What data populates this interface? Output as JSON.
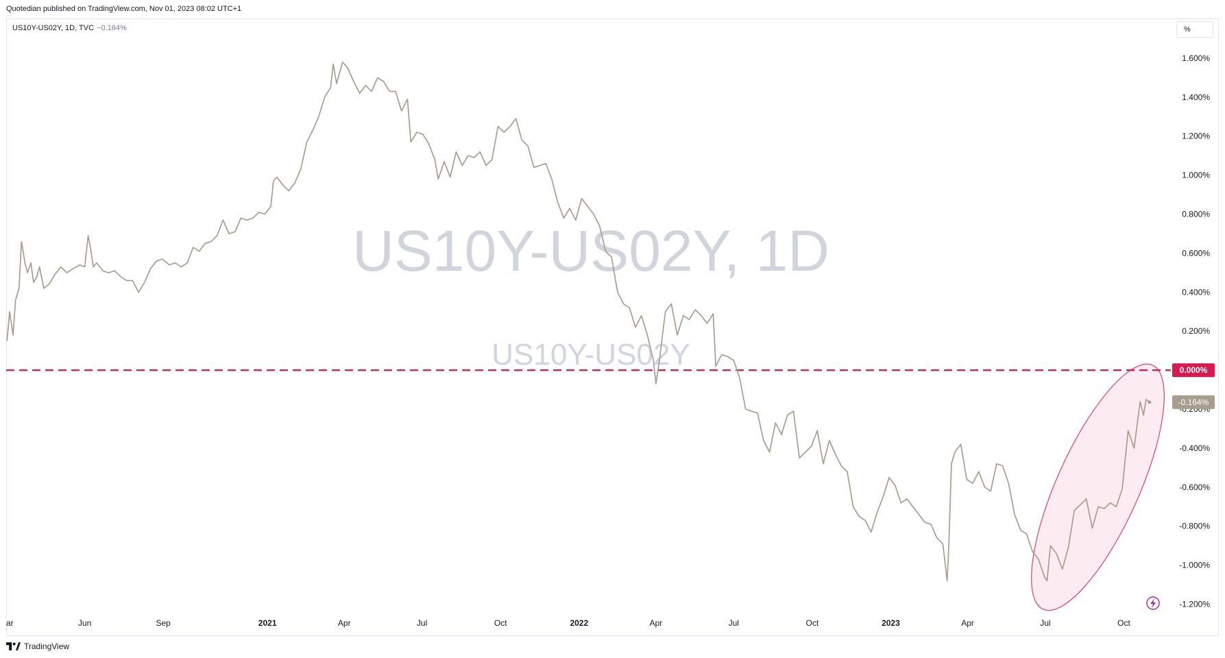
{
  "header": {
    "published_line": "Quotedian published on TradingView.com, Nov 01, 2023 08:02 UTC+1"
  },
  "legend": {
    "symbol": "US10Y-US02Y, 1D, TVC",
    "change": "−0.164%"
  },
  "scale_unit_label": "%",
  "watermark": {
    "main": "US10Y-US02Y, 1D",
    "sub": "US10Y-US02Y"
  },
  "footer": {
    "brand": "TradingView"
  },
  "colors": {
    "series": "#a89d8e",
    "zero_line": "#d81b4f",
    "ellipse_stroke": "#e0406d",
    "ellipse_fill": "#fce9ee",
    "last_price_bg": "#a89d8e",
    "zero_badge_bg": "#d81b4f",
    "watermark": "#d1d4dc"
  },
  "icons": {
    "brand_logo": "tradingview-logo-icon",
    "flash": "lightning-bolt-icon"
  },
  "chart_data": {
    "type": "line",
    "title": "",
    "xlabel": "",
    "ylabel": "",
    "x_range": [
      "2020-03-01",
      "2023-11-25"
    ],
    "ylim": [
      -1.3,
      1.8
    ],
    "y_ticks": [
      {
        "value": 1.6,
        "label": "1.600%"
      },
      {
        "value": 1.4,
        "label": "1.400%"
      },
      {
        "value": 1.2,
        "label": "1.200%"
      },
      {
        "value": 1.0,
        "label": "1.000%"
      },
      {
        "value": 0.8,
        "label": "0.800%"
      },
      {
        "value": 0.6,
        "label": "0.600%"
      },
      {
        "value": 0.4,
        "label": "0.400%"
      },
      {
        "value": 0.2,
        "label": "0.200%"
      },
      {
        "value": -0.2,
        "label": "-0.200%"
      },
      {
        "value": -0.4,
        "label": "-0.400%"
      },
      {
        "value": -0.6,
        "label": "-0.600%"
      },
      {
        "value": -0.8,
        "label": "-0.800%"
      },
      {
        "value": -1.0,
        "label": "-1.000%"
      },
      {
        "value": -1.2,
        "label": "-1.200%"
      }
    ],
    "x_ticks": [
      {
        "date": "2020-03-01",
        "label": "Mar",
        "bold": false
      },
      {
        "date": "2020-06-01",
        "label": "Jun",
        "bold": false
      },
      {
        "date": "2020-09-01",
        "label": "Sep",
        "bold": false
      },
      {
        "date": "2021-01-01",
        "label": "2021",
        "bold": true
      },
      {
        "date": "2021-04-01",
        "label": "Apr",
        "bold": false
      },
      {
        "date": "2021-07-01",
        "label": "Jul",
        "bold": false
      },
      {
        "date": "2021-10-01",
        "label": "Oct",
        "bold": false
      },
      {
        "date": "2022-01-01",
        "label": "2022",
        "bold": true
      },
      {
        "date": "2022-04-01",
        "label": "Apr",
        "bold": false
      },
      {
        "date": "2022-07-01",
        "label": "Jul",
        "bold": false
      },
      {
        "date": "2022-10-01",
        "label": "Oct",
        "bold": false
      },
      {
        "date": "2023-01-01",
        "label": "2023",
        "bold": true
      },
      {
        "date": "2023-04-01",
        "label": "Apr",
        "bold": false
      },
      {
        "date": "2023-07-01",
        "label": "Jul",
        "bold": false
      },
      {
        "date": "2023-10-01",
        "label": "Oct",
        "bold": false
      }
    ],
    "reference_line": {
      "value": 0.0,
      "label": "0.000%",
      "style": "dashed"
    },
    "last_value": {
      "value": -0.164,
      "label": "-0.164%"
    },
    "highlight": {
      "shape": "ellipse",
      "from": "2023-07-01",
      "to": "2023-11-01",
      "y_from": -1.2,
      "y_to": 0.0
    },
    "series": [
      {
        "name": "US10Y-US02Y",
        "points": [
          [
            "2020-03-02",
            0.15
          ],
          [
            "2020-03-05",
            0.3
          ],
          [
            "2020-03-09",
            0.18
          ],
          [
            "2020-03-12",
            0.36
          ],
          [
            "2020-03-16",
            0.42
          ],
          [
            "2020-03-19",
            0.66
          ],
          [
            "2020-03-23",
            0.55
          ],
          [
            "2020-03-26",
            0.5
          ],
          [
            "2020-03-30",
            0.55
          ],
          [
            "2020-04-02",
            0.45
          ],
          [
            "2020-04-06",
            0.48
          ],
          [
            "2020-04-09",
            0.53
          ],
          [
            "2020-04-14",
            0.42
          ],
          [
            "2020-04-20",
            0.44
          ],
          [
            "2020-04-27",
            0.49
          ],
          [
            "2020-05-04",
            0.53
          ],
          [
            "2020-05-11",
            0.5
          ],
          [
            "2020-05-18",
            0.52
          ],
          [
            "2020-05-26",
            0.54
          ],
          [
            "2020-06-01",
            0.53
          ],
          [
            "2020-06-05",
            0.69
          ],
          [
            "2020-06-08",
            0.62
          ],
          [
            "2020-06-11",
            0.53
          ],
          [
            "2020-06-15",
            0.55
          ],
          [
            "2020-06-22",
            0.51
          ],
          [
            "2020-06-29",
            0.5
          ],
          [
            "2020-07-06",
            0.51
          ],
          [
            "2020-07-13",
            0.48
          ],
          [
            "2020-07-20",
            0.46
          ],
          [
            "2020-07-27",
            0.46
          ],
          [
            "2020-08-03",
            0.4
          ],
          [
            "2020-08-10",
            0.45
          ],
          [
            "2020-08-17",
            0.52
          ],
          [
            "2020-08-24",
            0.56
          ],
          [
            "2020-08-31",
            0.57
          ],
          [
            "2020-09-08",
            0.54
          ],
          [
            "2020-09-15",
            0.55
          ],
          [
            "2020-09-22",
            0.53
          ],
          [
            "2020-09-29",
            0.55
          ],
          [
            "2020-10-06",
            0.63
          ],
          [
            "2020-10-13",
            0.61
          ],
          [
            "2020-10-20",
            0.65
          ],
          [
            "2020-10-27",
            0.66
          ],
          [
            "2020-11-03",
            0.69
          ],
          [
            "2020-11-10",
            0.77
          ],
          [
            "2020-11-17",
            0.7
          ],
          [
            "2020-11-24",
            0.71
          ],
          [
            "2020-12-01",
            0.78
          ],
          [
            "2020-12-08",
            0.77
          ],
          [
            "2020-12-15",
            0.78
          ],
          [
            "2020-12-22",
            0.81
          ],
          [
            "2020-12-29",
            0.8
          ],
          [
            "2021-01-05",
            0.84
          ],
          [
            "2021-01-08",
            0.97
          ],
          [
            "2021-01-12",
            0.99
          ],
          [
            "2021-01-19",
            0.95
          ],
          [
            "2021-01-26",
            0.92
          ],
          [
            "2021-02-02",
            0.96
          ],
          [
            "2021-02-09",
            1.03
          ],
          [
            "2021-02-16",
            1.17
          ],
          [
            "2021-02-23",
            1.23
          ],
          [
            "2021-03-02",
            1.3
          ],
          [
            "2021-03-09",
            1.4
          ],
          [
            "2021-03-16",
            1.45
          ],
          [
            "2021-03-19",
            1.57
          ],
          [
            "2021-03-23",
            1.47
          ],
          [
            "2021-03-30",
            1.58
          ],
          [
            "2021-04-05",
            1.55
          ],
          [
            "2021-04-12",
            1.48
          ],
          [
            "2021-04-19",
            1.42
          ],
          [
            "2021-04-26",
            1.46
          ],
          [
            "2021-05-03",
            1.43
          ],
          [
            "2021-05-10",
            1.5
          ],
          [
            "2021-05-17",
            1.48
          ],
          [
            "2021-05-24",
            1.43
          ],
          [
            "2021-05-31",
            1.43
          ],
          [
            "2021-06-07",
            1.33
          ],
          [
            "2021-06-14",
            1.39
          ],
          [
            "2021-06-18",
            1.17
          ],
          [
            "2021-06-25",
            1.22
          ],
          [
            "2021-07-02",
            1.21
          ],
          [
            "2021-07-09",
            1.16
          ],
          [
            "2021-07-16",
            1.08
          ],
          [
            "2021-07-20",
            0.98
          ],
          [
            "2021-07-27",
            1.07
          ],
          [
            "2021-08-03",
            0.99
          ],
          [
            "2021-08-10",
            1.12
          ],
          [
            "2021-08-17",
            1.05
          ],
          [
            "2021-08-24",
            1.1
          ],
          [
            "2021-08-31",
            1.09
          ],
          [
            "2021-09-07",
            1.12
          ],
          [
            "2021-09-14",
            1.05
          ],
          [
            "2021-09-21",
            1.08
          ],
          [
            "2021-09-28",
            1.25
          ],
          [
            "2021-10-05",
            1.22
          ],
          [
            "2021-10-12",
            1.25
          ],
          [
            "2021-10-19",
            1.29
          ],
          [
            "2021-10-26",
            1.18
          ],
          [
            "2021-11-02",
            1.15
          ],
          [
            "2021-11-09",
            1.04
          ],
          [
            "2021-11-16",
            1.05
          ],
          [
            "2021-11-23",
            1.06
          ],
          [
            "2021-11-30",
            0.98
          ],
          [
            "2021-12-07",
            0.86
          ],
          [
            "2021-12-14",
            0.78
          ],
          [
            "2021-12-21",
            0.83
          ],
          [
            "2021-12-28",
            0.77
          ],
          [
            "2022-01-04",
            0.88
          ],
          [
            "2022-01-11",
            0.84
          ],
          [
            "2022-01-18",
            0.8
          ],
          [
            "2022-01-25",
            0.74
          ],
          [
            "2022-02-01",
            0.61
          ],
          [
            "2022-02-08",
            0.58
          ],
          [
            "2022-02-15",
            0.4
          ],
          [
            "2022-02-22",
            0.34
          ],
          [
            "2022-03-01",
            0.32
          ],
          [
            "2022-03-08",
            0.22
          ],
          [
            "2022-03-15",
            0.28
          ],
          [
            "2022-03-22",
            0.18
          ],
          [
            "2022-03-29",
            0.05
          ],
          [
            "2022-04-01",
            -0.07
          ],
          [
            "2022-04-05",
            0.05
          ],
          [
            "2022-04-12",
            0.3
          ],
          [
            "2022-04-19",
            0.34
          ],
          [
            "2022-04-26",
            0.18
          ],
          [
            "2022-05-03",
            0.28
          ],
          [
            "2022-05-10",
            0.26
          ],
          [
            "2022-05-17",
            0.31
          ],
          [
            "2022-05-24",
            0.28
          ],
          [
            "2022-05-31",
            0.24
          ],
          [
            "2022-06-07",
            0.29
          ],
          [
            "2022-06-10",
            0.02
          ],
          [
            "2022-06-17",
            0.08
          ],
          [
            "2022-06-24",
            0.07
          ],
          [
            "2022-07-01",
            0.05
          ],
          [
            "2022-07-08",
            -0.04
          ],
          [
            "2022-07-15",
            -0.2
          ],
          [
            "2022-07-22",
            -0.21
          ],
          [
            "2022-07-29",
            -0.22
          ],
          [
            "2022-08-05",
            -0.36
          ],
          [
            "2022-08-12",
            -0.42
          ],
          [
            "2022-08-19",
            -0.27
          ],
          [
            "2022-08-26",
            -0.33
          ],
          [
            "2022-09-02",
            -0.23
          ],
          [
            "2022-09-09",
            -0.21
          ],
          [
            "2022-09-16",
            -0.45
          ],
          [
            "2022-09-23",
            -0.42
          ],
          [
            "2022-09-30",
            -0.39
          ],
          [
            "2022-10-07",
            -0.31
          ],
          [
            "2022-10-14",
            -0.48
          ],
          [
            "2022-10-21",
            -0.36
          ],
          [
            "2022-10-28",
            -0.43
          ],
          [
            "2022-11-04",
            -0.49
          ],
          [
            "2022-11-11",
            -0.52
          ],
          [
            "2022-11-18",
            -0.7
          ],
          [
            "2022-11-25",
            -0.75
          ],
          [
            "2022-12-02",
            -0.77
          ],
          [
            "2022-12-09",
            -0.83
          ],
          [
            "2022-12-16",
            -0.73
          ],
          [
            "2022-12-23",
            -0.65
          ],
          [
            "2022-12-30",
            -0.55
          ],
          [
            "2023-01-06",
            -0.59
          ],
          [
            "2023-01-13",
            -0.68
          ],
          [
            "2023-01-20",
            -0.66
          ],
          [
            "2023-01-27",
            -0.7
          ],
          [
            "2023-02-03",
            -0.74
          ],
          [
            "2023-02-10",
            -0.78
          ],
          [
            "2023-02-17",
            -0.79
          ],
          [
            "2023-02-24",
            -0.86
          ],
          [
            "2023-03-03",
            -0.89
          ],
          [
            "2023-03-08",
            -1.08
          ],
          [
            "2023-03-10",
            -0.9
          ],
          [
            "2023-03-13",
            -0.48
          ],
          [
            "2023-03-17",
            -0.42
          ],
          [
            "2023-03-24",
            -0.38
          ],
          [
            "2023-03-31",
            -0.56
          ],
          [
            "2023-04-07",
            -0.58
          ],
          [
            "2023-04-14",
            -0.52
          ],
          [
            "2023-04-21",
            -0.6
          ],
          [
            "2023-04-28",
            -0.62
          ],
          [
            "2023-05-05",
            -0.48
          ],
          [
            "2023-05-12",
            -0.49
          ],
          [
            "2023-05-19",
            -0.58
          ],
          [
            "2023-05-26",
            -0.74
          ],
          [
            "2023-06-02",
            -0.82
          ],
          [
            "2023-06-09",
            -0.84
          ],
          [
            "2023-06-16",
            -0.93
          ],
          [
            "2023-06-23",
            -0.97
          ],
          [
            "2023-06-30",
            -1.06
          ],
          [
            "2023-07-03",
            -1.08
          ],
          [
            "2023-07-07",
            -0.9
          ],
          [
            "2023-07-14",
            -0.94
          ],
          [
            "2023-07-21",
            -1.02
          ],
          [
            "2023-07-28",
            -0.91
          ],
          [
            "2023-08-04",
            -0.72
          ],
          [
            "2023-08-11",
            -0.69
          ],
          [
            "2023-08-18",
            -0.66
          ],
          [
            "2023-08-25",
            -0.81
          ],
          [
            "2023-09-01",
            -0.7
          ],
          [
            "2023-09-08",
            -0.71
          ],
          [
            "2023-09-15",
            -0.68
          ],
          [
            "2023-09-22",
            -0.7
          ],
          [
            "2023-09-29",
            -0.61
          ],
          [
            "2023-10-06",
            -0.31
          ],
          [
            "2023-10-13",
            -0.4
          ],
          [
            "2023-10-20",
            -0.16
          ],
          [
            "2023-10-24",
            -0.23
          ],
          [
            "2023-10-27",
            -0.15
          ],
          [
            "2023-10-31",
            -0.164
          ]
        ]
      }
    ]
  }
}
